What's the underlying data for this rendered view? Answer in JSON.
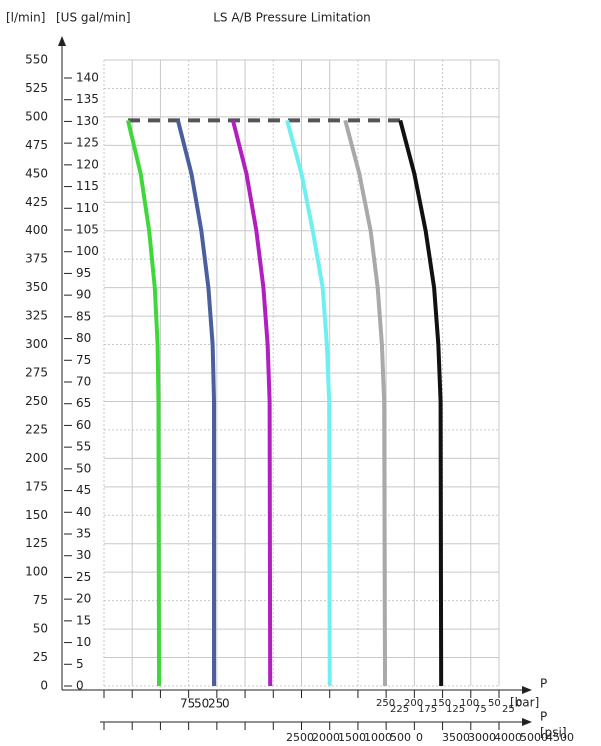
{
  "chart_data": {
    "type": "line",
    "title": "LS A/B Pressure Limitation",
    "y_label": "[l/min]",
    "y2_label": "[US gal/min]",
    "ylim": [
      0,
      550
    ],
    "yticks": [
      0,
      25,
      50,
      75,
      100,
      125,
      150,
      175,
      200,
      225,
      250,
      275,
      300,
      325,
      350,
      375,
      400,
      425,
      450,
      475,
      500,
      525,
      550
    ],
    "y2lim": [
      0,
      140
    ],
    "y2ticks": [
      0,
      5,
      10,
      15,
      20,
      25,
      30,
      35,
      40,
      45,
      50,
      55,
      60,
      65,
      70,
      75,
      80,
      85,
      90,
      95,
      100,
      105,
      110,
      115,
      120,
      125,
      130,
      135,
      140
    ],
    "xlim": [
      0,
      14
    ],
    "grid": true,
    "x_label_bar": "P",
    "x_unit_bar": "[bar]",
    "x_label_psi": "P",
    "x_unit_psi": "[psi]",
    "bar_labels_left": [
      "75",
      "50",
      "25",
      "0"
    ],
    "bar_labels_right": [
      "250",
      "225",
      "200",
      "175",
      "150",
      "125",
      "100",
      "75",
      "50",
      "25",
      "0"
    ],
    "psi_labels": [
      "2500",
      "2000",
      "1500",
      "1000",
      "500",
      "0",
      "3500",
      "3000",
      "4000",
      "5000",
      "4500"
    ],
    "limit_line": {
      "value": 497,
      "x": [
        0.85,
        10.5
      ],
      "color": "#555555"
    },
    "series": [
      {
        "color": "#3fd83a",
        "x": [
          0.85,
          1.3,
          1.6,
          1.8,
          1.9,
          1.93,
          1.95
        ],
        "values": [
          497,
          450,
          400,
          350,
          300,
          250,
          0
        ]
      },
      {
        "color": "#4b5f9e",
        "x": [
          2.62,
          3.1,
          3.45,
          3.7,
          3.85,
          3.9,
          3.9
        ],
        "values": [
          497,
          450,
          400,
          350,
          300,
          250,
          0
        ]
      },
      {
        "color": "#b21fbf",
        "x": [
          4.57,
          5.05,
          5.4,
          5.65,
          5.8,
          5.87,
          5.89
        ],
        "values": [
          497,
          450,
          400,
          350,
          300,
          250,
          0
        ]
      },
      {
        "color": "#6ff0f0",
        "x": [
          6.49,
          7.0,
          7.4,
          7.75,
          7.9,
          7.98,
          8.0
        ],
        "values": [
          497,
          450,
          400,
          350,
          300,
          250,
          0
        ]
      },
      {
        "color": "#a9a9a9",
        "x": [
          8.55,
          9.05,
          9.45,
          9.7,
          9.85,
          9.93,
          9.96
        ],
        "values": [
          497,
          450,
          400,
          350,
          300,
          250,
          0
        ]
      },
      {
        "color": "#111111",
        "x": [
          10.5,
          11.0,
          11.4,
          11.7,
          11.85,
          11.93,
          11.95
        ],
        "values": [
          497,
          450,
          400,
          350,
          300,
          250,
          0
        ]
      }
    ]
  }
}
